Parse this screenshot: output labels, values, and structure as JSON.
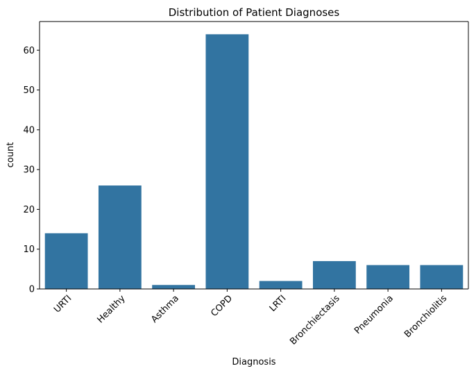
{
  "chart_data": {
    "type": "bar",
    "title": "Distribution of Patient Diagnoses",
    "xlabel": "Diagnosis",
    "ylabel": "count",
    "categories": [
      "URTI",
      "Healthy",
      "Asthma",
      "COPD",
      "LRTI",
      "Bronchiectasis",
      "Pneumonia",
      "Bronchiolitis"
    ],
    "values": [
      14,
      26,
      1,
      64,
      2,
      7,
      6,
      6
    ],
    "ylim": [
      0,
      67.2
    ],
    "yticks": [
      0,
      10,
      20,
      30,
      40,
      50,
      60
    ],
    "bar_color": "#3274a1",
    "grid": false,
    "legend": "none"
  }
}
